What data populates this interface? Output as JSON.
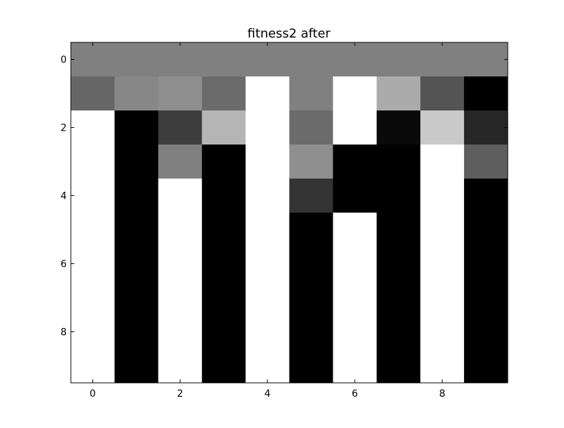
{
  "chart_data": {
    "type": "heatmap",
    "title": "fitness2 after",
    "xlabel": "",
    "ylabel": "",
    "colormap": "gray",
    "value_range": [
      0,
      1
    ],
    "x_ticks": [
      0,
      2,
      4,
      6,
      8
    ],
    "y_ticks": [
      0,
      2,
      4,
      6,
      8
    ],
    "xlim": [
      -0.5,
      9.5
    ],
    "ylim": [
      9.5,
      -0.5
    ],
    "grid": false,
    "matrix": [
      [
        0.5,
        0.5,
        0.5,
        0.5,
        0.5,
        0.5,
        0.5,
        0.5,
        0.5,
        0.5
      ],
      [
        0.4,
        0.53,
        0.56,
        0.42,
        1.0,
        0.5,
        1.0,
        0.67,
        0.33,
        0.0
      ],
      [
        1.0,
        0.0,
        0.24,
        0.71,
        1.0,
        0.42,
        1.0,
        0.04,
        0.79,
        0.15
      ],
      [
        1.0,
        0.0,
        0.5,
        0.0,
        1.0,
        0.56,
        0.0,
        0.0,
        1.0,
        0.37
      ],
      [
        1.0,
        0.0,
        1.0,
        0.0,
        1.0,
        0.2,
        0.0,
        0.0,
        1.0,
        0.0
      ],
      [
        1.0,
        0.0,
        1.0,
        0.0,
        1.0,
        0.0,
        1.0,
        0.0,
        1.0,
        0.0
      ],
      [
        1.0,
        0.0,
        1.0,
        0.0,
        1.0,
        0.0,
        1.0,
        0.0,
        1.0,
        0.0
      ],
      [
        1.0,
        0.0,
        1.0,
        0.0,
        1.0,
        0.0,
        1.0,
        0.0,
        1.0,
        0.0
      ],
      [
        1.0,
        0.0,
        1.0,
        0.0,
        1.0,
        0.0,
        1.0,
        0.0,
        1.0,
        0.0
      ],
      [
        1.0,
        0.0,
        1.0,
        0.0,
        1.0,
        0.0,
        1.0,
        0.0,
        1.0,
        0.0
      ]
    ]
  }
}
